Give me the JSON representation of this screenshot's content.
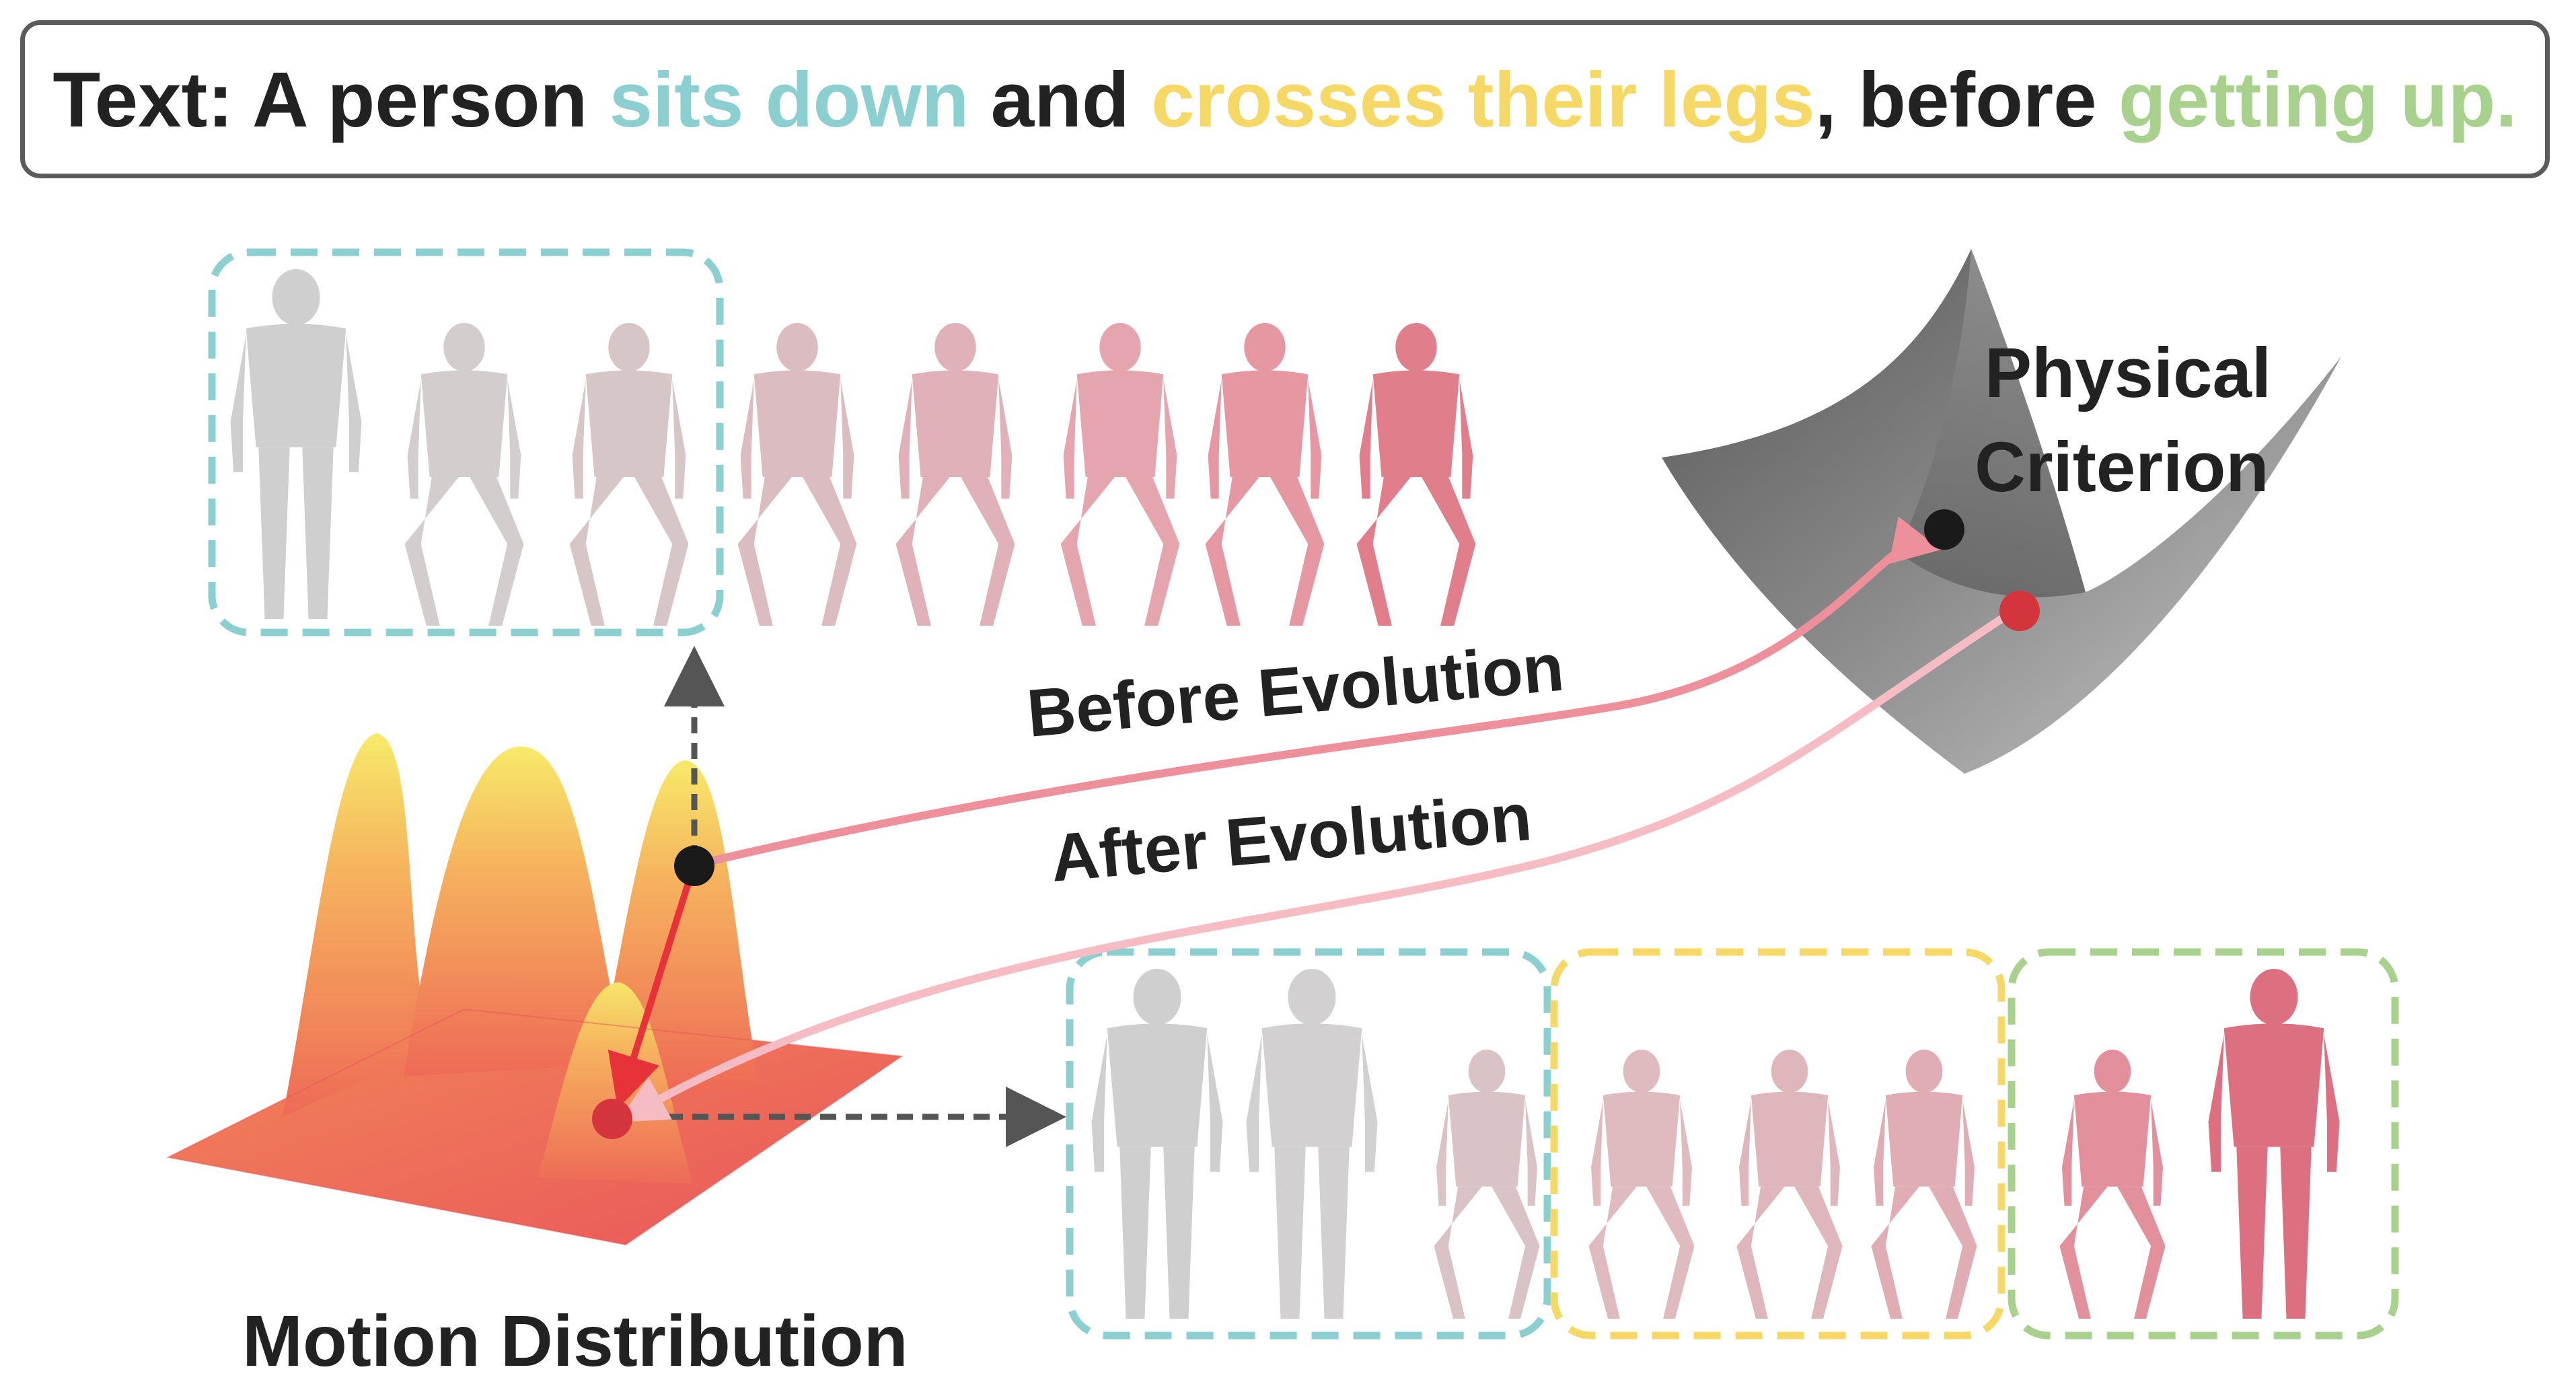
{
  "prompt": {
    "prefix": "Text: A person ",
    "segment_1": "sits down",
    "connector_1": " and ",
    "segment_2": "crosses their legs",
    "connector_2": ", before ",
    "segment_3": "getting up."
  },
  "labels": {
    "physical_criterion_line1": "Physical",
    "physical_criterion_line2": "Criterion",
    "before_evolution": "Before Evolution",
    "after_evolution": "After Evolution",
    "motion_distribution": "Motion Distribution"
  },
  "colors": {
    "teal": "#8ccfd0",
    "yellow": "#f6d866",
    "green": "#a9d18e",
    "text": "#222222",
    "before_arrow": "#ee8f9c",
    "after_arrow": "#f6bcc4",
    "red_point": "#d4343c",
    "black_point": "#1a1a1a"
  },
  "icons": {
    "human": "human-mesh-icon",
    "surface": "gaussian-surface",
    "bowl": "physical-criterion-bowl"
  }
}
